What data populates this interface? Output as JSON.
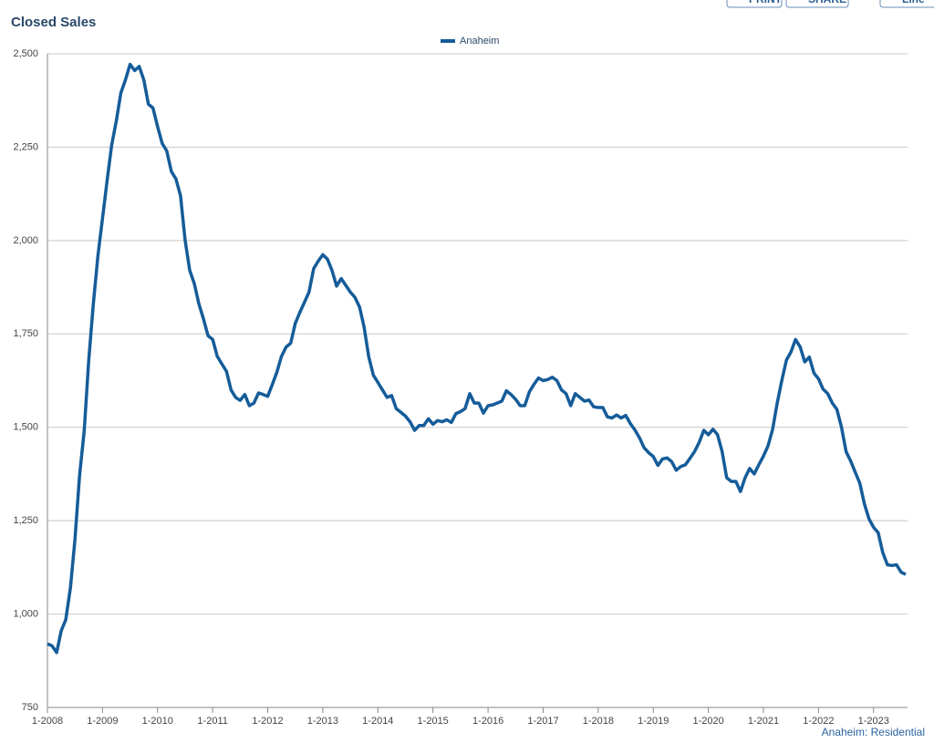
{
  "chart_data": {
    "type": "line",
    "title": "Closed Sales",
    "footnote": "Anaheim: Residential",
    "toolbar": [
      "PRINT",
      "SHARE",
      "Line"
    ],
    "categories": [
      "1-2008",
      null,
      null,
      null,
      null,
      null,
      null,
      null,
      null,
      null,
      null,
      null,
      "1-2009",
      null,
      null,
      null,
      null,
      null,
      null,
      null,
      null,
      null,
      null,
      null,
      "1-2010",
      null,
      null,
      null,
      null,
      null,
      null,
      null,
      null,
      null,
      null,
      null,
      "1-2011",
      null,
      null,
      null,
      null,
      null,
      null,
      null,
      null,
      null,
      null,
      null,
      "1-2012",
      null,
      null,
      null,
      null,
      null,
      null,
      null,
      null,
      null,
      null,
      null,
      "1-2013",
      null,
      null,
      null,
      null,
      null,
      null,
      null,
      null,
      null,
      null,
      null,
      "1-2014",
      null,
      null,
      null,
      null,
      null,
      null,
      null,
      null,
      null,
      null,
      null,
      "1-2015",
      null,
      null,
      null,
      null,
      null,
      null,
      null,
      null,
      null,
      null,
      null,
      "1-2016",
      null,
      null,
      null,
      null,
      null,
      null,
      null,
      null,
      null,
      null,
      null,
      "1-2017",
      null,
      null,
      null,
      null,
      null,
      null,
      null,
      null,
      null,
      null,
      null,
      "1-2018",
      null,
      null,
      null,
      null,
      null,
      null,
      null,
      null,
      null,
      null,
      null,
      "1-2019",
      null,
      null,
      null,
      null,
      null,
      null,
      null,
      null,
      null,
      null,
      null,
      "1-2020",
      null,
      null,
      null,
      null,
      null,
      null,
      null,
      null,
      null,
      null,
      null,
      "1-2021",
      null,
      null,
      null,
      null,
      null,
      null,
      null,
      null,
      null,
      null,
      null,
      "1-2022",
      null,
      null,
      null,
      null,
      null,
      null,
      null,
      null,
      null,
      null,
      null,
      "1-2023",
      null,
      null,
      null,
      null,
      null,
      null,
      null
    ],
    "series": [
      {
        "name": "Anaheim",
        "color": "#155c99",
        "values": [
          920,
          915,
          897,
          955,
          985,
          1070,
          1200,
          1370,
          1490,
          1680,
          1830,
          1960,
          2060,
          2160,
          2255,
          2320,
          2395,
          2430,
          2472,
          2455,
          2466,
          2430,
          2365,
          2355,
          2305,
          2260,
          2240,
          2185,
          2165,
          2120,
          2000,
          1920,
          1885,
          1830,
          1790,
          1745,
          1735,
          1690,
          1670,
          1650,
          1600,
          1580,
          1572,
          1588,
          1558,
          1565,
          1592,
          1588,
          1583,
          1615,
          1648,
          1690,
          1715,
          1725,
          1778,
          1808,
          1835,
          1862,
          1925,
          1945,
          1962,
          1950,
          1920,
          1878,
          1898,
          1880,
          1862,
          1848,
          1822,
          1768,
          1690,
          1640,
          1620,
          1600,
          1580,
          1585,
          1550,
          1540,
          1530,
          1515,
          1492,
          1505,
          1505,
          1523,
          1508,
          1518,
          1515,
          1520,
          1513,
          1537,
          1542,
          1550,
          1590,
          1565,
          1565,
          1538,
          1558,
          1560,
          1565,
          1570,
          1598,
          1588,
          1575,
          1558,
          1558,
          1595,
          1615,
          1632,
          1625,
          1628,
          1634,
          1625,
          1600,
          1590,
          1558,
          1590,
          1580,
          1570,
          1573,
          1555,
          1553,
          1553,
          1528,
          1525,
          1533,
          1525,
          1532,
          1510,
          1493,
          1472,
          1445,
          1432,
          1422,
          1398,
          1415,
          1418,
          1408,
          1385,
          1395,
          1400,
          1417,
          1435,
          1460,
          1492,
          1480,
          1495,
          1480,
          1435,
          1365,
          1355,
          1355,
          1328,
          1365,
          1390,
          1375,
          1400,
          1423,
          1450,
          1495,
          1565,
          1625,
          1680,
          1702,
          1735,
          1715,
          1675,
          1688,
          1645,
          1630,
          1602,
          1590,
          1565,
          1548,
          1500,
          1435,
          1410,
          1380,
          1350,
          1295,
          1255,
          1232,
          1218,
          1165,
          1132,
          1130,
          1132,
          1112,
          1106
        ]
      }
    ],
    "ylim": [
      750,
      2500
    ],
    "yticks": [
      {
        "value": 750,
        "label": "750"
      },
      {
        "value": 1000,
        "label": "1,000"
      },
      {
        "value": 1250,
        "label": "1,250"
      },
      {
        "value": 1500,
        "label": "1,500"
      },
      {
        "value": 1750,
        "label": "1,750"
      },
      {
        "value": 2000,
        "label": "2,000"
      },
      {
        "value": 2250,
        "label": "2,250"
      },
      {
        "value": 2500,
        "label": "2,500"
      }
    ],
    "grid": true,
    "legend": "top"
  }
}
